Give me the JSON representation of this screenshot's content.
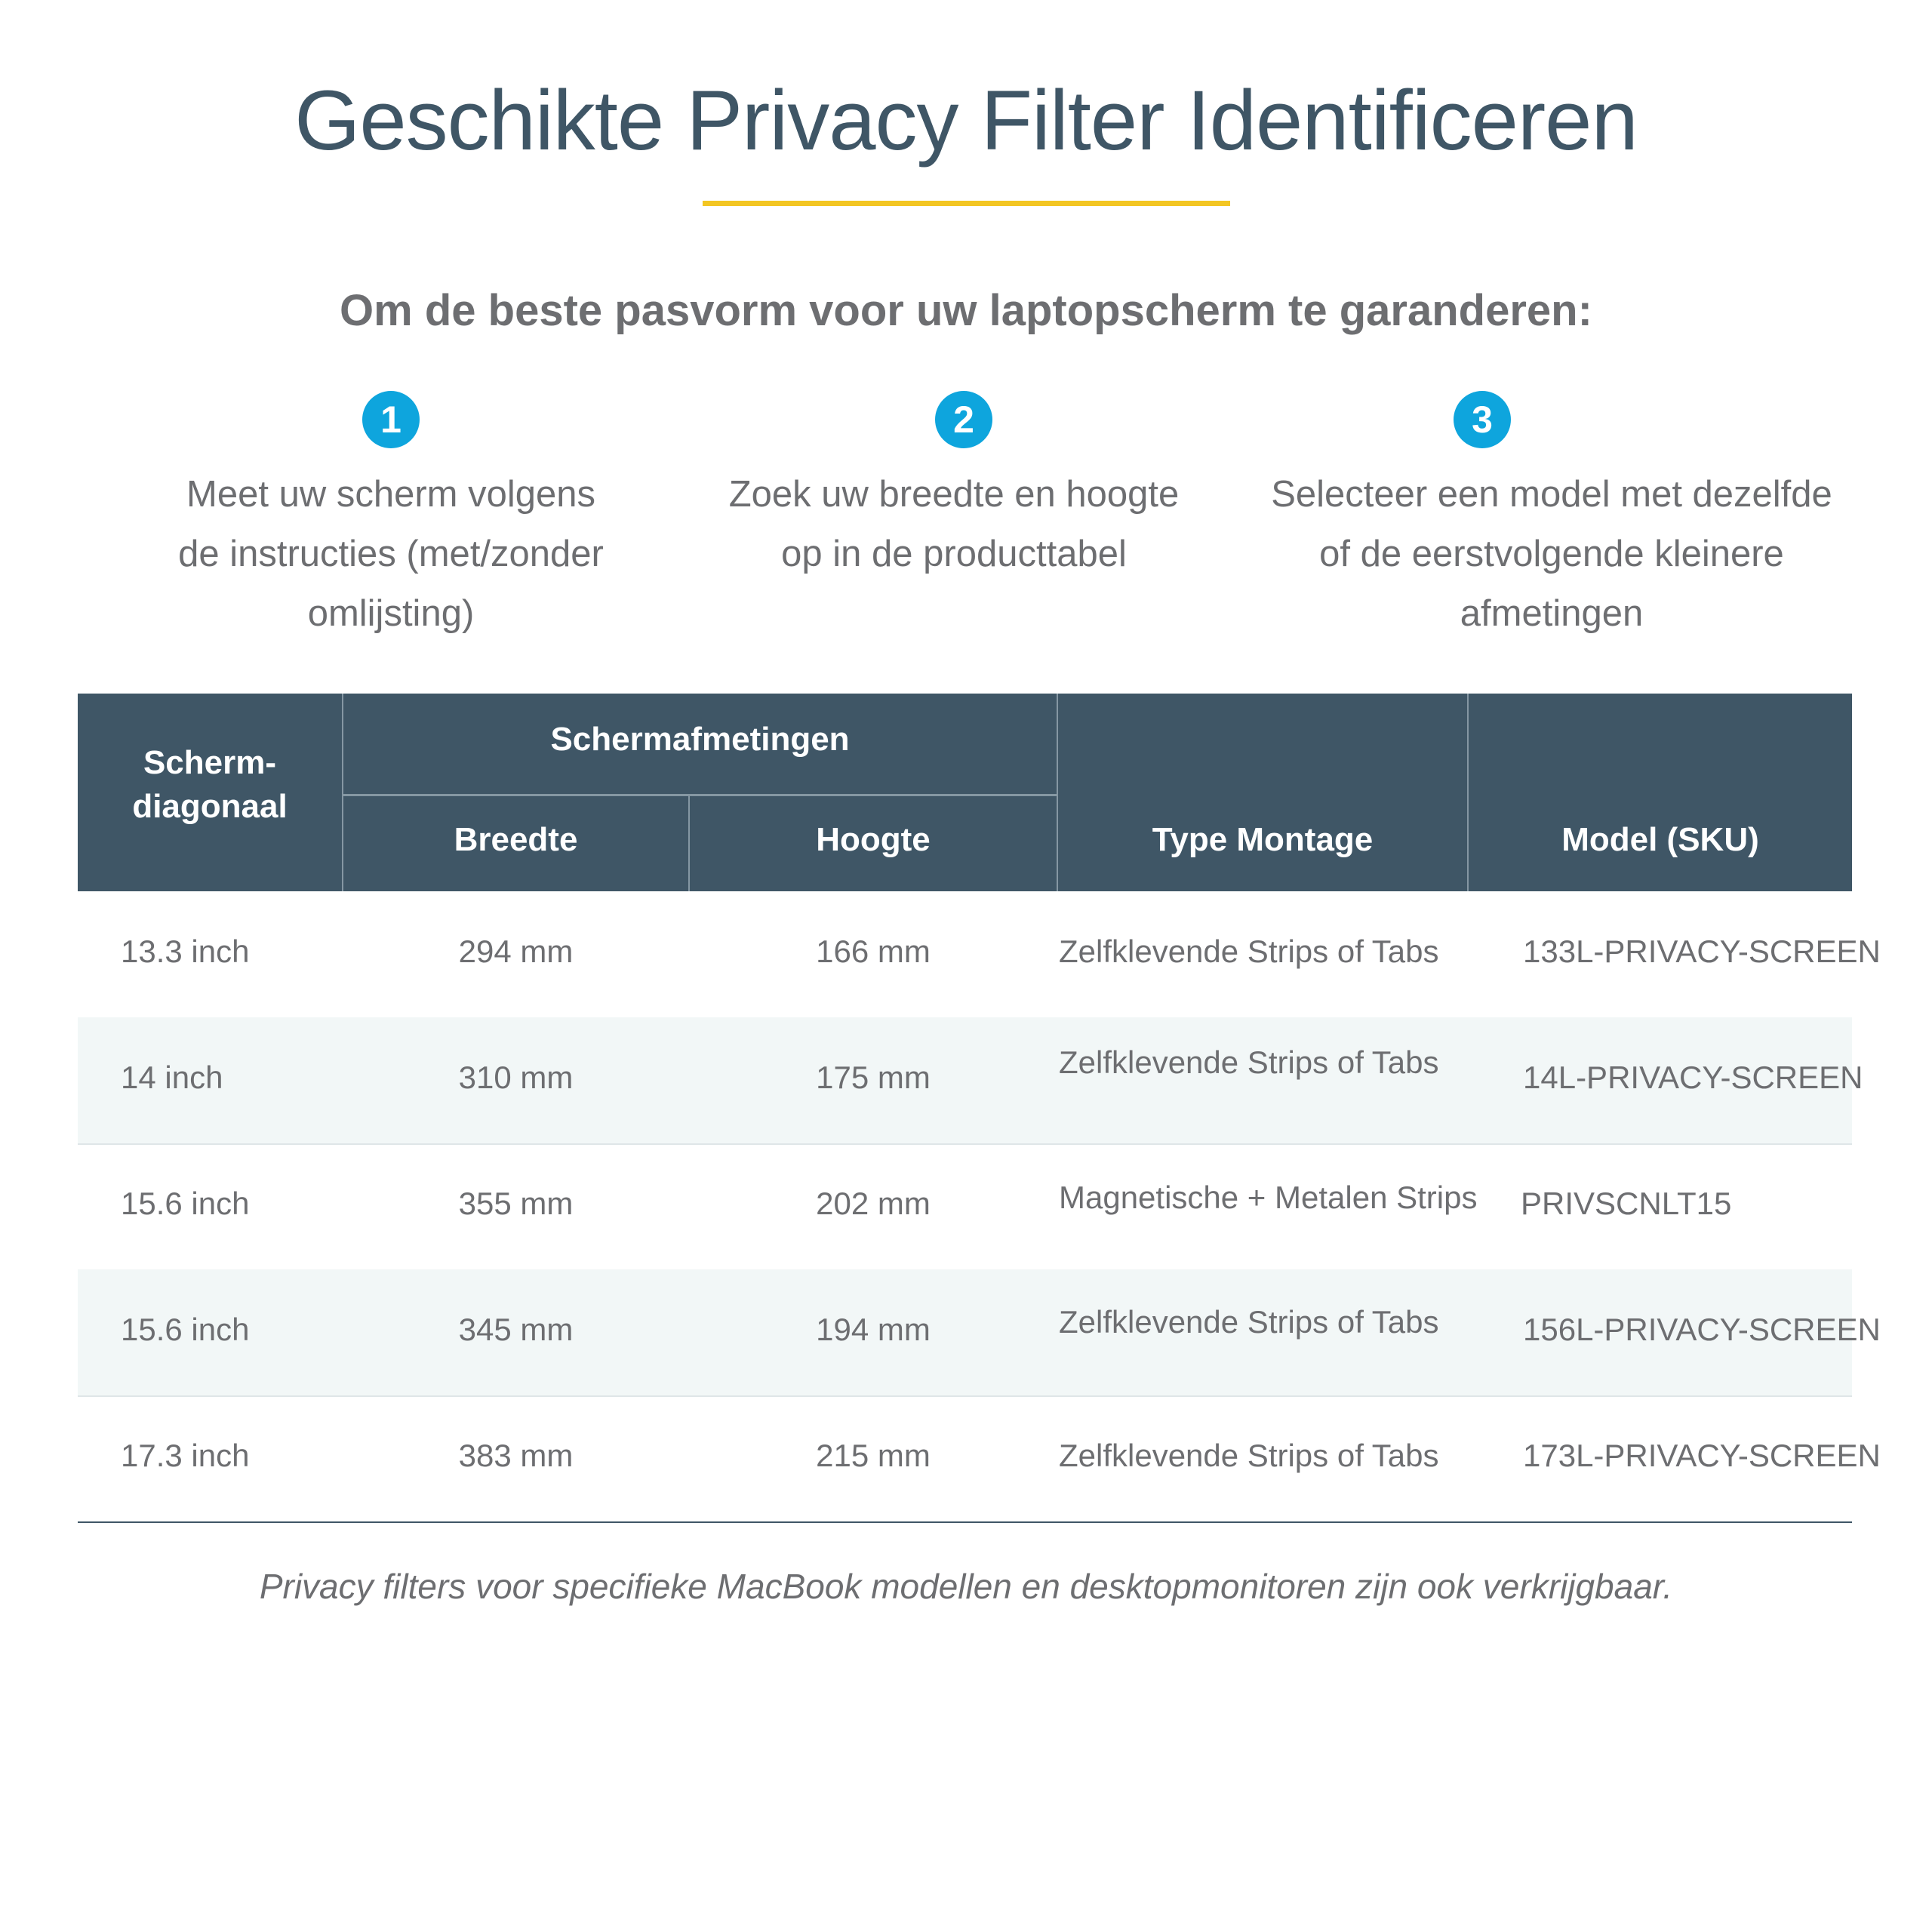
{
  "title": "Geschikte Privacy Filter Identificeren",
  "subtitle": "Om de beste pasvorm voor uw laptopscherm te garanderen:",
  "colors": {
    "accent_yellow": "#f3c623",
    "badge_blue": "#0ea5dd",
    "header_bg": "#3f5666",
    "alt_row": "#f2f7f7"
  },
  "steps": [
    {
      "number": "1",
      "lines": [
        "Meet uw scherm volgens",
        "de instructies (met/zonder",
        "omlijsting)"
      ]
    },
    {
      "number": "2",
      "lines": [
        "Zoek uw breedte en hoogte",
        "op in de producttabel"
      ]
    },
    {
      "number": "3",
      "lines": [
        "Selecteer een model met dezelfde",
        "of de eerstvolgende kleinere",
        "afmetingen"
      ]
    }
  ],
  "table": {
    "headers": {
      "diagonal_line1": "Scherm-",
      "diagonal_line2": "diagonaal",
      "dimensions": "Schermafmetingen",
      "width": "Breedte",
      "height": "Hoogte",
      "mount": "Type Montage",
      "model": "Model (SKU)"
    },
    "rows": [
      {
        "diagonal": "13.3 inch",
        "width": "294 mm",
        "height": "166 mm",
        "mount": "Zelfklevende Strips of Tabs",
        "model": "133L-PRIVACY-SCREEN"
      },
      {
        "diagonal": "14 inch",
        "width": "310 mm",
        "height": "175 mm",
        "mount": "Zelfklevende Strips of Tabs",
        "model": "14L-PRIVACY-SCREEN"
      },
      {
        "diagonal": "15.6 inch",
        "width": "355 mm",
        "height": "202 mm",
        "mount": "Magnetische + Metalen Strips",
        "model": "PRIVSCNLT15"
      },
      {
        "diagonal": "15.6 inch",
        "width": "345 mm",
        "height": "194 mm",
        "mount": "Zelfklevende Strips of Tabs",
        "model": "156L-PRIVACY-SCREEN"
      },
      {
        "diagonal": "17.3 inch",
        "width": "383 mm",
        "height": "215 mm",
        "mount": "Zelfklevende Strips of Tabs",
        "model": "173L-PRIVACY-SCREEN"
      }
    ]
  },
  "footnote": "Privacy filters voor specifieke MacBook modellen en desktopmonitoren zijn ook verkrijgbaar."
}
